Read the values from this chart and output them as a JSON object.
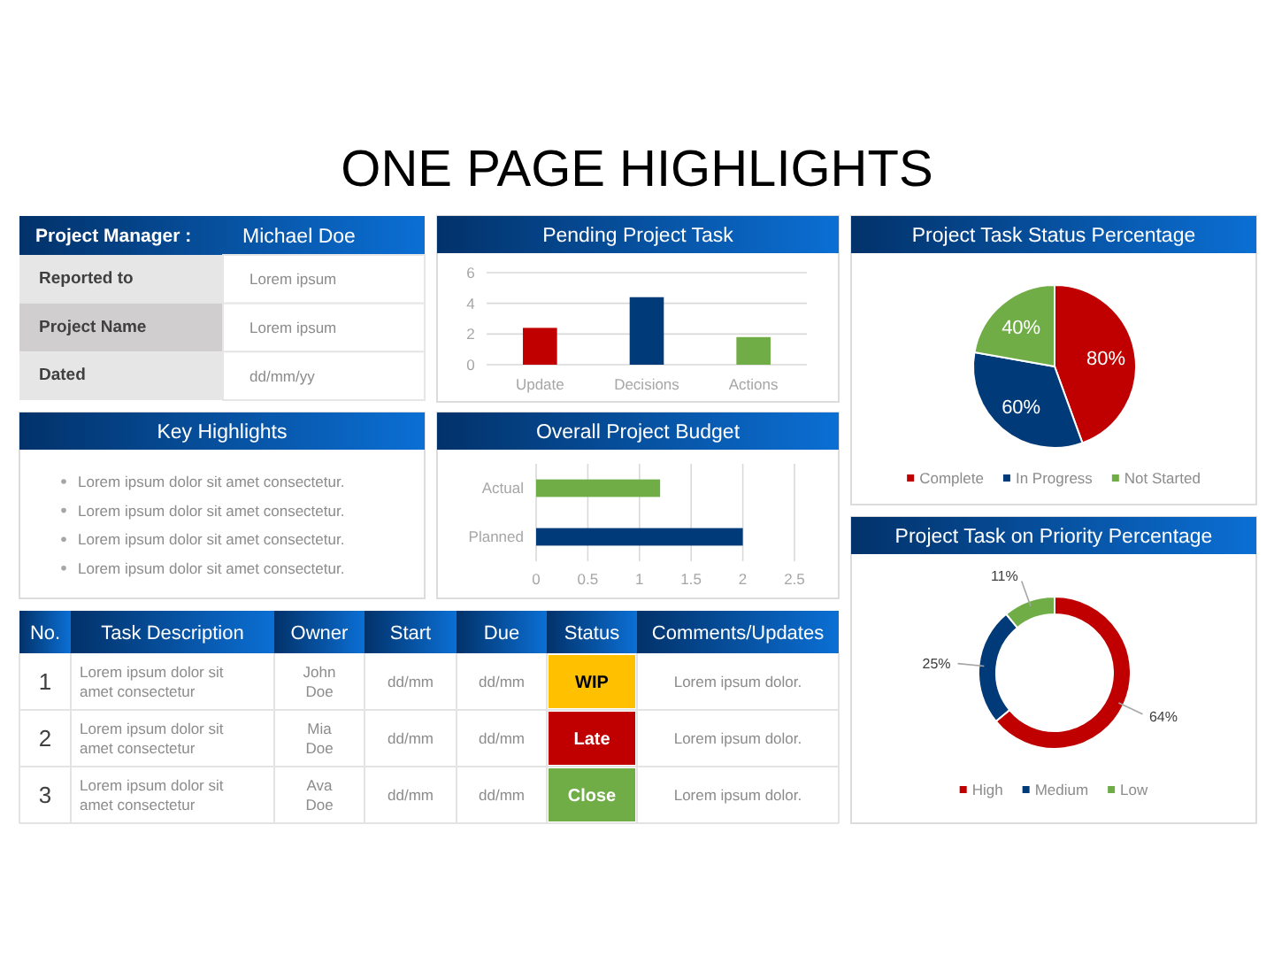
{
  "chart_data": [
    {
      "type": "other",
      "title": "ONE PAGE HIGHLIGHTS"
    },
    {
      "type": "other",
      "title": "Project Manager :",
      "subtitle": "Michael Doe",
      "annotations": [
        "Reported to",
        "Lorem ipsum",
        "Project Name",
        "Lorem ipsum",
        "Dated",
        "dd/mm/yy"
      ]
    },
    {
      "type": "bar",
      "title": "Pending Project Task",
      "categories": [
        "Update",
        "Decisions",
        "Actions"
      ],
      "values": [
        2.4,
        4.4,
        1.8
      ],
      "colors": [
        "#c00000",
        "#003a78",
        "#70ad47"
      ],
      "ylim": [
        0,
        6
      ],
      "yticks": [
        0,
        2,
        4,
        6
      ],
      "grid": "y"
    },
    {
      "type": "pie",
      "title": "Project Task Status Percentage",
      "categories": [
        "Complete",
        "In Progress",
        "Not Started"
      ],
      "values": [
        80,
        60,
        40
      ],
      "colors": [
        "#c00000",
        "#003a78",
        "#70ad47"
      ],
      "value_labels": [
        "80%",
        "60%",
        "40%"
      ],
      "legend": "bottom"
    },
    {
      "type": "other",
      "title": "Key Highlights",
      "annotations": [
        "Lorem ipsum dolor sit amet consectetur.",
        "Lorem ipsum dolor sit amet consectetur.",
        "Lorem ipsum dolor sit amet consectetur.",
        "Lorem ipsum dolor sit amet consectetur."
      ]
    },
    {
      "type": "bar",
      "orientation": "horizontal",
      "title": "Overall Project Budget",
      "categories": [
        "Actual",
        "Planned"
      ],
      "values": [
        1.2,
        2
      ],
      "colors": [
        "#70ad47",
        "#003a78"
      ],
      "xlim": [
        0,
        2.5
      ],
      "xticks": [
        0,
        0.5,
        1,
        1.5,
        2,
        2.5
      ],
      "grid": "x"
    },
    {
      "type": "donut",
      "title": "Project Task on Priority Percentage",
      "categories": [
        "High",
        "Medium",
        "Low"
      ],
      "values": [
        64,
        25,
        11
      ],
      "colors": [
        "#c00000",
        "#003a78",
        "#70ad47"
      ],
      "value_labels": [
        "64%",
        "25%",
        "11%"
      ],
      "legend": "bottom"
    },
    {
      "type": "other",
      "categories": [
        "No.",
        "Task Description",
        "Owner",
        "Start",
        "Due",
        "Status",
        "Comments/Updates"
      ],
      "annotations": [
        "1",
        "Lorem ipsum dolor sit amet consectetur",
        "John Doe",
        "dd/mm",
        "dd/mm",
        "WIP",
        "Lorem ipsum dolor.",
        "2",
        "Lorem ipsum dolor sit amet consectetur",
        "Mia Doe",
        "dd/mm",
        "dd/mm",
        "Late",
        "Lorem ipsum dolor.",
        "3",
        "Lorem ipsum dolor sit amet consectetur",
        "Ava Doe",
        "dd/mm",
        "dd/mm",
        "Close",
        "Lorem ipsum dolor."
      ],
      "colors": [
        null,
        null,
        null,
        null,
        null,
        "#ffc000",
        null,
        null,
        null,
        null,
        null,
        null,
        "#c00000",
        null,
        null,
        null,
        null,
        null,
        null,
        "#70ad47",
        null
      ]
    }
  ]
}
